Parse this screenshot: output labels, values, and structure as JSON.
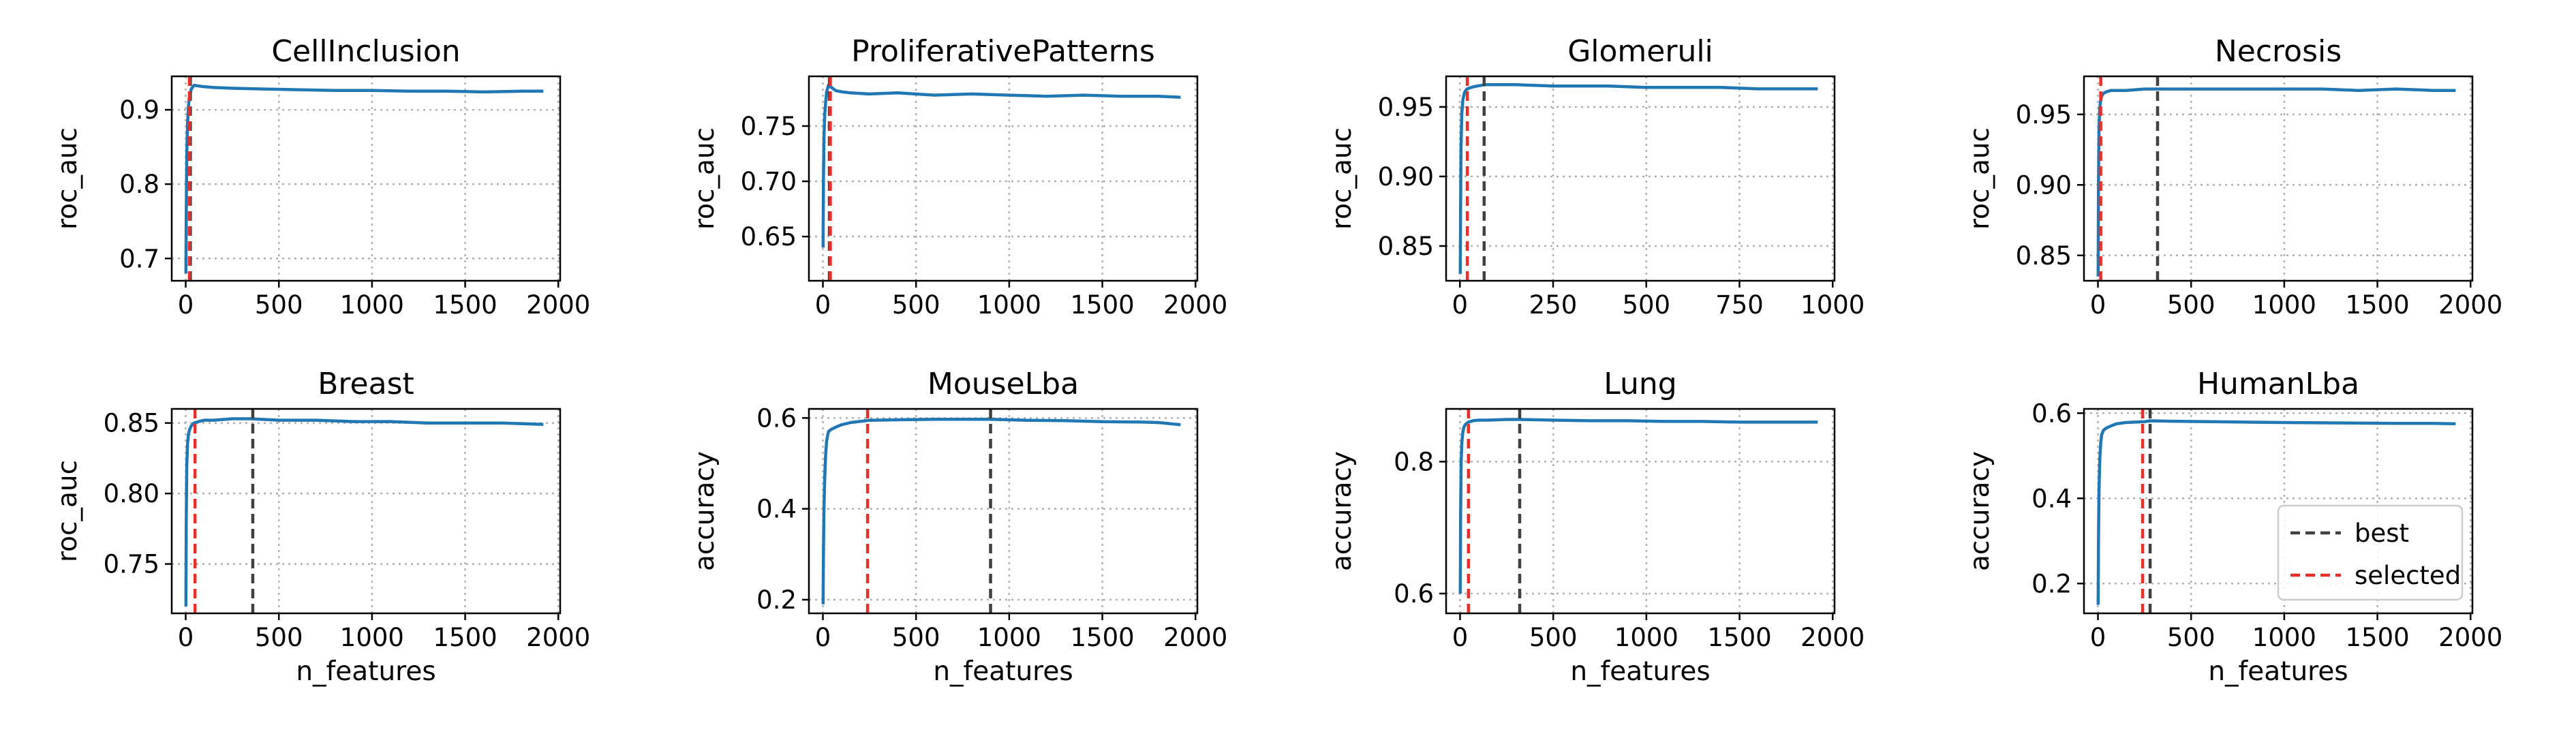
{
  "chart_data": [
    {
      "type": "line",
      "title": "CellInclusion",
      "xlabel": "",
      "ylabel": "roc_auc",
      "xlim": [
        -75,
        2010
      ],
      "ylim": [
        0.67,
        0.945
      ],
      "xticks": [
        0,
        500,
        1000,
        1500,
        2000
      ],
      "yticks": [
        0.7,
        0.8,
        0.9
      ],
      "yticklabels": [
        "0.7",
        "0.8",
        "0.9"
      ],
      "series": [
        {
          "x": [
            1,
            3,
            6,
            10,
            15,
            20,
            30,
            45,
            70,
            100,
            150,
            250,
            400,
            600,
            800,
            1000,
            1200,
            1400,
            1600,
            1800,
            1920
          ],
          "values": [
            0.68,
            0.76,
            0.84,
            0.88,
            0.905,
            0.918,
            0.928,
            0.933,
            0.932,
            0.931,
            0.93,
            0.929,
            0.928,
            0.927,
            0.926,
            0.926,
            0.925,
            0.925,
            0.924,
            0.925,
            0.925
          ]
        }
      ],
      "vlines": [
        {
          "name": "best",
          "x": 25
        },
        {
          "name": "selected",
          "x": 20
        }
      ]
    },
    {
      "type": "line",
      "title": "ProliferativePatterns",
      "xlabel": "",
      "ylabel": "roc_auc",
      "xlim": [
        -75,
        2010
      ],
      "ylim": [
        0.61,
        0.795
      ],
      "xticks": [
        0,
        500,
        1000,
        1500,
        2000
      ],
      "yticks": [
        0.65,
        0.7,
        0.75
      ],
      "yticklabels": [
        "0.65",
        "0.70",
        "0.75"
      ],
      "series": [
        {
          "x": [
            1,
            3,
            6,
            10,
            15,
            20,
            30,
            45,
            70,
            100,
            150,
            250,
            400,
            600,
            800,
            1000,
            1200,
            1400,
            1600,
            1800,
            1920
          ],
          "values": [
            0.64,
            0.7,
            0.74,
            0.76,
            0.772,
            0.781,
            0.787,
            0.785,
            0.782,
            0.781,
            0.78,
            0.779,
            0.78,
            0.778,
            0.779,
            0.778,
            0.777,
            0.778,
            0.777,
            0.777,
            0.776
          ]
        }
      ],
      "vlines": [
        {
          "name": "best",
          "x": 35
        },
        {
          "name": "selected",
          "x": 40
        }
      ]
    },
    {
      "type": "line",
      "title": "Glomeruli",
      "xlabel": "",
      "ylabel": "roc_auc",
      "xlim": [
        -37,
        1005
      ],
      "ylim": [
        0.825,
        0.972
      ],
      "xticks": [
        0,
        250,
        500,
        750,
        1000
      ],
      "yticks": [
        0.85,
        0.9,
        0.95
      ],
      "yticklabels": [
        "0.85",
        "0.90",
        "0.95"
      ],
      "series": [
        {
          "x": [
            1,
            2,
            3,
            5,
            8,
            12,
            16,
            20,
            30,
            45,
            70,
            100,
            150,
            250,
            400,
            500,
            600,
            700,
            800,
            900,
            960
          ],
          "values": [
            0.83,
            0.88,
            0.92,
            0.945,
            0.955,
            0.96,
            0.962,
            0.963,
            0.964,
            0.965,
            0.966,
            0.966,
            0.966,
            0.965,
            0.965,
            0.964,
            0.964,
            0.964,
            0.963,
            0.963,
            0.963
          ]
        }
      ],
      "vlines": [
        {
          "name": "best",
          "x": 65
        },
        {
          "name": "selected",
          "x": 20
        }
      ]
    },
    {
      "type": "line",
      "title": "Necrosis",
      "xlabel": "",
      "ylabel": "roc_auc",
      "xlim": [
        -75,
        2010
      ],
      "ylim": [
        0.832,
        0.977
      ],
      "xticks": [
        0,
        500,
        1000,
        1500,
        2000
      ],
      "yticks": [
        0.85,
        0.9,
        0.95
      ],
      "yticklabels": [
        "0.85",
        "0.90",
        "0.95"
      ],
      "series": [
        {
          "x": [
            1,
            3,
            6,
            10,
            15,
            20,
            30,
            45,
            70,
            100,
            150,
            250,
            400,
            600,
            800,
            1000,
            1200,
            1400,
            1600,
            1800,
            1920
          ],
          "values": [
            0.835,
            0.9,
            0.94,
            0.955,
            0.96,
            0.963,
            0.965,
            0.966,
            0.967,
            0.967,
            0.967,
            0.968,
            0.968,
            0.968,
            0.968,
            0.968,
            0.968,
            0.967,
            0.968,
            0.967,
            0.967
          ]
        }
      ],
      "vlines": [
        {
          "name": "best",
          "x": 320
        },
        {
          "name": "selected",
          "x": 15
        }
      ]
    },
    {
      "type": "line",
      "title": "Breast",
      "xlabel": "n_features",
      "ylabel": "roc_auc",
      "xlim": [
        -75,
        2010
      ],
      "ylim": [
        0.715,
        0.86
      ],
      "xticks": [
        0,
        500,
        1000,
        1500,
        2000
      ],
      "yticks": [
        0.75,
        0.8,
        0.85
      ],
      "yticklabels": [
        "0.75",
        "0.80",
        "0.85"
      ],
      "series": [
        {
          "x": [
            1,
            3,
            6,
            10,
            15,
            20,
            30,
            45,
            70,
            100,
            150,
            250,
            350,
            500,
            700,
            900,
            1100,
            1300,
            1500,
            1700,
            1920
          ],
          "values": [
            0.72,
            0.78,
            0.82,
            0.835,
            0.842,
            0.845,
            0.848,
            0.85,
            0.851,
            0.852,
            0.852,
            0.853,
            0.853,
            0.852,
            0.852,
            0.851,
            0.851,
            0.85,
            0.85,
            0.85,
            0.849
          ]
        }
      ],
      "vlines": [
        {
          "name": "best",
          "x": 360
        },
        {
          "name": "selected",
          "x": 50
        }
      ]
    },
    {
      "type": "line",
      "title": "MouseLba",
      "xlabel": "n_features",
      "ylabel": "accuracy",
      "xlim": [
        -75,
        2010
      ],
      "ylim": [
        0.17,
        0.62
      ],
      "xticks": [
        0,
        500,
        1000,
        1500,
        2000
      ],
      "yticks": [
        0.2,
        0.4,
        0.6
      ],
      "yticklabels": [
        "0.2",
        "0.4",
        "0.6"
      ],
      "series": [
        {
          "x": [
            1,
            3,
            6,
            10,
            15,
            20,
            30,
            45,
            70,
            100,
            150,
            250,
            400,
            600,
            900,
            1100,
            1300,
            1500,
            1700,
            1800,
            1920
          ],
          "values": [
            0.19,
            0.3,
            0.4,
            0.47,
            0.52,
            0.55,
            0.57,
            0.575,
            0.58,
            0.585,
            0.59,
            0.595,
            0.596,
            0.597,
            0.597,
            0.595,
            0.594,
            0.592,
            0.591,
            0.59,
            0.585
          ]
        }
      ],
      "vlines": [
        {
          "name": "best",
          "x": 900
        },
        {
          "name": "selected",
          "x": 240
        }
      ]
    },
    {
      "type": "line",
      "title": "Lung",
      "xlabel": "n_features",
      "ylabel": "accuracy",
      "xlim": [
        -75,
        2010
      ],
      "ylim": [
        0.57,
        0.88
      ],
      "xticks": [
        0,
        500,
        1000,
        1500,
        2000
      ],
      "yticks": [
        0.6,
        0.8
      ],
      "yticklabels": [
        "0.6",
        "0.8"
      ],
      "series": [
        {
          "x": [
            1,
            3,
            6,
            10,
            15,
            20,
            30,
            45,
            70,
            100,
            150,
            250,
            320,
            500,
            700,
            900,
            1100,
            1300,
            1500,
            1700,
            1920
          ],
          "values": [
            0.6,
            0.72,
            0.8,
            0.83,
            0.845,
            0.852,
            0.857,
            0.86,
            0.862,
            0.863,
            0.863,
            0.864,
            0.864,
            0.863,
            0.862,
            0.862,
            0.861,
            0.861,
            0.86,
            0.86,
            0.86
          ]
        }
      ],
      "vlines": [
        {
          "name": "best",
          "x": 320
        },
        {
          "name": "selected",
          "x": 45
        }
      ]
    },
    {
      "type": "line",
      "title": "HumanLba",
      "xlabel": "n_features",
      "ylabel": "accuracy",
      "xlim": [
        -75,
        2010
      ],
      "ylim": [
        0.13,
        0.61
      ],
      "xticks": [
        0,
        500,
        1000,
        1500,
        2000
      ],
      "yticks": [
        0.2,
        0.4,
        0.6
      ],
      "yticklabels": [
        "0.2",
        "0.4",
        "0.6"
      ],
      "series": [
        {
          "x": [
            1,
            3,
            6,
            10,
            15,
            20,
            30,
            45,
            70,
            100,
            150,
            250,
            280,
            400,
            600,
            800,
            1000,
            1300,
            1600,
            1800,
            1920
          ],
          "values": [
            0.15,
            0.3,
            0.42,
            0.49,
            0.53,
            0.55,
            0.56,
            0.565,
            0.57,
            0.575,
            0.578,
            0.58,
            0.582,
            0.581,
            0.58,
            0.579,
            0.578,
            0.577,
            0.576,
            0.576,
            0.575
          ]
        }
      ],
      "vlines": [
        {
          "name": "best",
          "x": 280
        },
        {
          "name": "selected",
          "x": 240
        }
      ]
    }
  ],
  "legend": {
    "placement": "lower-right",
    "entries": [
      {
        "label": "best",
        "color": "#404040"
      },
      {
        "label": "selected",
        "color": "#e8302b"
      }
    ]
  },
  "colors": {
    "line": "#1f77b4",
    "best": "#404040",
    "selected": "#e8302b",
    "grid": "#b0b0b0"
  },
  "grid": true
}
